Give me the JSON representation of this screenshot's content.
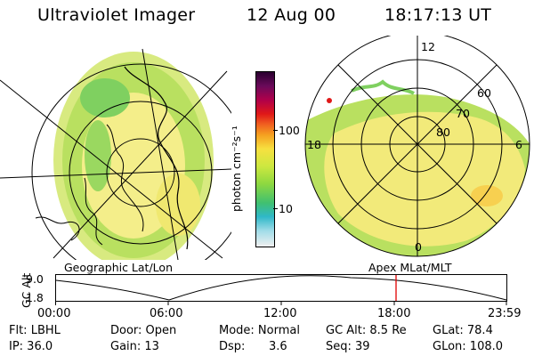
{
  "header": {
    "instrument": "Ultraviolet Imager",
    "date": "12 Aug 00",
    "time": "18:17:13 UT"
  },
  "left_panel": {
    "caption": "Geographic Lat/Lon"
  },
  "right_panel": {
    "caption": "Apex  MLat/MLT",
    "mlt_labels": [
      "12",
      "18",
      "6",
      "0"
    ],
    "mlat_labels": [
      "60",
      "70",
      "80"
    ]
  },
  "colorbar": {
    "unit_label": "photon cm⁻²s⁻¹",
    "ticks": [
      "100",
      "10"
    ],
    "scale": "log",
    "colors_top_to_bottom": [
      "#2a0030",
      "#6a0a5a",
      "#b0004a",
      "#e01818",
      "#f06020",
      "#f5a020",
      "#f7e040",
      "#cde840",
      "#8ed840",
      "#40c070",
      "#30b8c8",
      "#a0dce8",
      "#f0f0f0"
    ]
  },
  "timeline": {
    "y_label": "GC Alt",
    "y_ticks": [
      "9.0",
      "1.8"
    ],
    "x_ticks": [
      "00:00",
      "06:00",
      "12:00",
      "18:00",
      "23:59"
    ],
    "marker_color": "#e00000"
  },
  "status": {
    "row1": {
      "flt": "Flt: LBHL",
      "door": "Door: Open",
      "mode": "Mode: Normal",
      "gc_alt": "GC Alt: 8.5 Re",
      "glat": "GLat: 78.4"
    },
    "row2": {
      "ip": "IP: 36.0",
      "gain": "Gain: 13",
      "dsp_label": "Dsp:",
      "dsp_value": "3.6",
      "seq": "Seq: 39",
      "glon": "GLon: 108.0"
    }
  }
}
